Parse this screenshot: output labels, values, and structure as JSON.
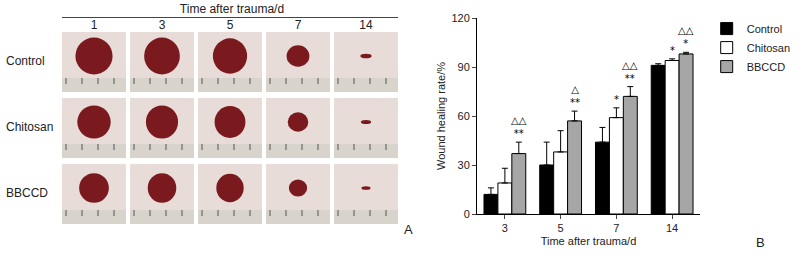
{
  "panel_a": {
    "title": "Time after trauma/d",
    "columns": [
      "1",
      "3",
      "5",
      "7",
      "14"
    ],
    "rows": [
      "Control",
      "Chitosan",
      "BBCCD"
    ],
    "letter": "A"
  },
  "chart_data": {
    "type": "bar",
    "letter": "B",
    "x_label": "Time after trauma/d",
    "y_label": "Wound healing rate/%",
    "categories": [
      "3",
      "5",
      "7",
      "14"
    ],
    "series": [
      {
        "name": "Control",
        "color": "#000000",
        "values": [
          12,
          30,
          44,
          91
        ],
        "errors": [
          4,
          14,
          9,
          1
        ],
        "marks": [
          null,
          null,
          null,
          null
        ],
        "marks_vs_chitosan": [
          null,
          null,
          null,
          null
        ]
      },
      {
        "name": "Chitosan",
        "color": "#ffffff",
        "values": [
          19,
          38,
          59,
          94
        ],
        "errors": [
          9,
          13,
          6,
          1
        ],
        "marks": [
          null,
          null,
          "*",
          "*"
        ],
        "marks_vs_chitosan": [
          null,
          null,
          null,
          null
        ]
      },
      {
        "name": "BBCCD",
        "color": "#a6a6a6",
        "values": [
          37,
          57,
          72,
          98
        ],
        "errors": [
          7,
          6,
          6,
          1
        ],
        "marks": [
          "**",
          "**",
          "**",
          "*"
        ],
        "marks_vs_chitosan": [
          "△△",
          "△",
          "△△",
          "△△"
        ]
      }
    ],
    "ylim": [
      0,
      120
    ],
    "yticks": [
      0,
      30,
      60,
      90,
      120
    ],
    "grid": false,
    "legend": "right"
  }
}
